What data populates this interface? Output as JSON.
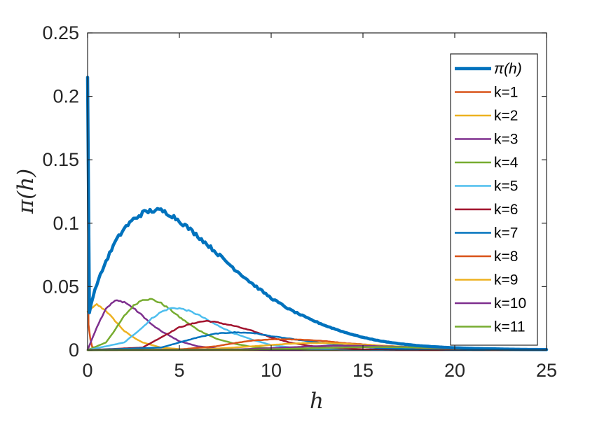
{
  "chart_data": {
    "type": "line",
    "xlabel": "h",
    "ylabel": "π(h)",
    "xlim": [
      0,
      25
    ],
    "ylim": [
      0,
      0.25
    ],
    "xticks": [
      0,
      5,
      10,
      15,
      20,
      25
    ],
    "xtick_labels": [
      "0",
      "5",
      "10",
      "15",
      "20",
      "25"
    ],
    "yticks": [
      0,
      0.05,
      0.1,
      0.15,
      0.2,
      0.25
    ],
    "ytick_labels": [
      "0",
      "0.05",
      "0.1",
      "0.15",
      "0.2",
      "0.25"
    ],
    "grid": false,
    "legend_position": "top-right",
    "series": [
      {
        "name": "π(h)",
        "color": "#0072BD",
        "width": 4.5,
        "x": [
          0,
          0.1,
          0.25,
          0.5,
          1,
          1.5,
          2,
          2.5,
          3,
          3.5,
          4,
          4.5,
          5,
          6,
          7,
          8,
          9,
          10,
          11,
          12,
          13,
          14,
          15,
          16,
          17,
          18,
          19,
          20,
          21,
          22,
          23,
          24,
          25
        ],
        "y": [
          0.215,
          0.03,
          0.04,
          0.052,
          0.07,
          0.085,
          0.096,
          0.103,
          0.108,
          0.11,
          0.11,
          0.107,
          0.102,
          0.09,
          0.077,
          0.064,
          0.052,
          0.041,
          0.032,
          0.025,
          0.019,
          0.014,
          0.01,
          0.007,
          0.005,
          0.0035,
          0.0025,
          0.0018,
          0.0013,
          0.001,
          0.0007,
          0.0005,
          0.0004
        ]
      },
      {
        "name": "k=1",
        "color": "#D95319",
        "width": 2.5,
        "x": [
          0,
          0.05,
          0.2,
          0.5,
          1,
          25
        ],
        "y": [
          0.183,
          0.02,
          0.003,
          0.0008,
          0,
          0
        ]
      },
      {
        "name": "k=2",
        "color": "#EDB120",
        "width": 2.5,
        "x": [
          0,
          0.5,
          1,
          1.5,
          2,
          2.5,
          3,
          3.5,
          4,
          5,
          6,
          8,
          25
        ],
        "y": [
          0.03,
          0.036,
          0.031,
          0.023,
          0.015,
          0.01,
          0.006,
          0.004,
          0.002,
          0.0008,
          0.0003,
          0,
          0
        ]
      },
      {
        "name": "k=3",
        "color": "#7E2F8E",
        "width": 2.5,
        "x": [
          0,
          0.5,
          1,
          1.5,
          2,
          2.5,
          3,
          3.5,
          4,
          5,
          6,
          7,
          8,
          10,
          25
        ],
        "y": [
          0,
          0.018,
          0.033,
          0.039,
          0.038,
          0.033,
          0.027,
          0.02,
          0.015,
          0.007,
          0.003,
          0.0013,
          0.0005,
          0,
          0
        ]
      },
      {
        "name": "k=4",
        "color": "#77AC30",
        "width": 2.5,
        "x": [
          0,
          1,
          1.5,
          2,
          2.5,
          3,
          3.5,
          4,
          4.5,
          5,
          6,
          7,
          8,
          9,
          10,
          12,
          25
        ],
        "y": [
          0,
          0.006,
          0.016,
          0.027,
          0.035,
          0.04,
          0.04,
          0.037,
          0.032,
          0.026,
          0.016,
          0.009,
          0.005,
          0.0025,
          0.0012,
          0.0002,
          0
        ]
      },
      {
        "name": "k=5",
        "color": "#4DBEEE",
        "width": 2.5,
        "x": [
          0,
          2,
          3,
          3.5,
          4,
          4.5,
          5,
          5.5,
          6,
          7,
          8,
          9,
          10,
          11,
          12,
          14,
          25
        ],
        "y": [
          0,
          0.006,
          0.018,
          0.025,
          0.03,
          0.033,
          0.033,
          0.031,
          0.028,
          0.02,
          0.013,
          0.008,
          0.004,
          0.0022,
          0.0011,
          0.0002,
          0
        ]
      },
      {
        "name": "k=6",
        "color": "#A2142F",
        "width": 2.5,
        "x": [
          0,
          3,
          4,
          5,
          6,
          6.5,
          7,
          8,
          9,
          10,
          11,
          12,
          13,
          15,
          17,
          25
        ],
        "y": [
          0,
          0.002,
          0.01,
          0.018,
          0.022,
          0.023,
          0.022,
          0.019,
          0.015,
          0.01,
          0.006,
          0.0035,
          0.002,
          0.0006,
          0.0002,
          0
        ]
      },
      {
        "name": "k=7",
        "color": "#0072BD",
        "width": 2.5,
        "x": [
          0,
          4,
          5,
          6,
          7,
          8,
          9,
          10,
          11,
          12,
          14,
          16,
          18,
          20,
          25
        ],
        "y": [
          0,
          0.002,
          0.006,
          0.01,
          0.013,
          0.014,
          0.0135,
          0.011,
          0.009,
          0.007,
          0.0035,
          0.0015,
          0.0006,
          0.0002,
          0
        ]
      },
      {
        "name": "k=8",
        "color": "#D95319",
        "width": 2.5,
        "x": [
          0,
          5,
          7,
          8,
          9,
          10,
          11,
          12,
          13,
          14,
          16,
          18,
          20,
          22,
          25
        ],
        "y": [
          0,
          0.0005,
          0.003,
          0.0055,
          0.0075,
          0.0085,
          0.0085,
          0.008,
          0.007,
          0.0055,
          0.0035,
          0.0018,
          0.0008,
          0.0003,
          0
        ]
      },
      {
        "name": "k=9",
        "color": "#EDB120",
        "width": 2.5,
        "x": [
          0,
          6,
          8,
          10,
          11,
          12,
          13,
          14,
          15,
          17,
          19,
          21,
          23,
          25
        ],
        "y": [
          0,
          0.0003,
          0.002,
          0.004,
          0.005,
          0.0055,
          0.0055,
          0.005,
          0.0042,
          0.0028,
          0.0015,
          0.0007,
          0.0003,
          0.0001
        ]
      },
      {
        "name": "k=10",
        "color": "#7E2F8E",
        "width": 2.5,
        "x": [
          0,
          8,
          10,
          12,
          13,
          14,
          15,
          16,
          18,
          20,
          22,
          25
        ],
        "y": [
          0,
          0.0005,
          0.0015,
          0.0028,
          0.0033,
          0.0035,
          0.0034,
          0.003,
          0.0022,
          0.0012,
          0.0006,
          0.0002
        ]
      },
      {
        "name": "k=11",
        "color": "#77AC30",
        "width": 2.5,
        "x": [
          0,
          9,
          11,
          13,
          15,
          16,
          17,
          19,
          21,
          23,
          25
        ],
        "y": [
          0,
          0.0003,
          0.001,
          0.0018,
          0.0023,
          0.0024,
          0.0023,
          0.0018,
          0.0011,
          0.0006,
          0.0003
        ]
      }
    ]
  }
}
